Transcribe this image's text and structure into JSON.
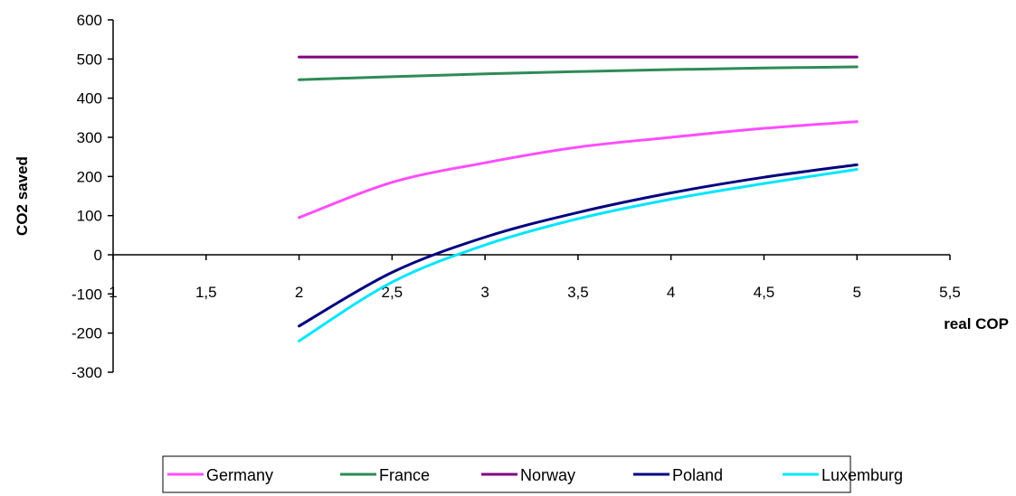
{
  "chart_data": {
    "type": "line",
    "title": "",
    "xlabel": "real COP",
    "ylabel": "CO2 saved",
    "xlim": [
      1,
      5.5
    ],
    "ylim": [
      -300,
      600
    ],
    "x_ticks": [
      "1",
      "1,5",
      "2",
      "2,5",
      "3",
      "3,5",
      "4",
      "4,5",
      "5",
      "5,5"
    ],
    "y_ticks": [
      "600",
      "500",
      "400",
      "300",
      "200",
      "100",
      "0",
      "-100",
      "-200",
      "-300"
    ],
    "grid": false,
    "legend_position": "bottom",
    "x": [
      2,
      2.5,
      3,
      3.5,
      4,
      4.5,
      5
    ],
    "series": [
      {
        "name": "Germany",
        "color": "#ff4dff",
        "values": [
          95,
          185,
          235,
          275,
          300,
          323,
          340
        ]
      },
      {
        "name": "France",
        "color": "#2e8b57",
        "values": [
          447,
          455,
          462,
          468,
          473,
          477,
          480
        ]
      },
      {
        "name": "Norway",
        "color": "#800080",
        "values": [
          505,
          505,
          505,
          505,
          505,
          505,
          505
        ]
      },
      {
        "name": "Poland",
        "color": "#000080",
        "values": [
          -182,
          -45,
          45,
          108,
          158,
          198,
          230
        ]
      },
      {
        "name": "Luxemburg",
        "color": "#00e5ff",
        "values": [
          -220,
          -70,
          25,
          92,
          142,
          182,
          218
        ]
      }
    ]
  }
}
